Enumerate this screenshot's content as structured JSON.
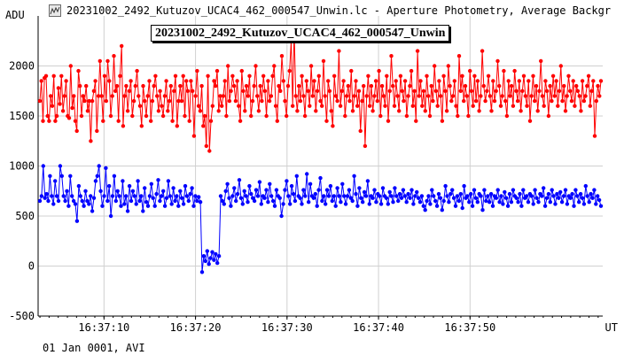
{
  "window": {
    "title": "20231002_2492_Kutuzov_UCAC4_462_000547_Unwin.lc - Aperture Photometry, Average Backgr",
    "icon": "lightcurve-app-icon"
  },
  "footer": "01 Jan 0001, AVI",
  "chart_data": {
    "type": "line",
    "title": "20231002_2492_Kutuzov_UCAC4_462_000547_Unwin",
    "ylabel": "ADU",
    "xlabel": "UT",
    "ylim": [
      -500,
      2500
    ],
    "yticks": [
      -500,
      0,
      500,
      1000,
      1500,
      2000
    ],
    "xlim": [
      "16:37:02.8",
      "16:38:04.5"
    ],
    "xticks": [
      "16:37:10",
      "16:37:20",
      "16:37:30",
      "16:37:40",
      "16:37:50"
    ],
    "grid": true,
    "series": [
      {
        "color": "#ff0000",
        "style": "line-with-markers",
        "approx_range": [
          1150,
          2350
        ],
        "values": [
          1650,
          1850,
          1450,
          1880,
          1900,
          1500,
          1450,
          1700,
          1600,
          1900,
          1450,
          1500,
          1780,
          1620,
          1900,
          1550,
          1700,
          1850,
          1500,
          1480,
          2000,
          1580,
          1700,
          1450,
          1350,
          1950,
          1800,
          1500,
          1700,
          1650,
          1800,
          1550,
          1650,
          1250,
          1650,
          1750,
          1850,
          1350,
          1700,
          2050,
          1700,
          1450,
          1900,
          1650,
          2050,
          1850,
          1500,
          1700,
          2100,
          1750,
          1800,
          1450,
          1900,
          2200,
          1400,
          1700,
          1800,
          1550,
          1750,
          1850,
          1500,
          1650,
          1800,
          1950,
          1700,
          1600,
          1400,
          1800,
          1650,
          1500,
          1700,
          1850,
          1450,
          1650,
          1800,
          1900,
          1700,
          1550,
          1750,
          1600,
          1500,
          1700,
          1850,
          1550,
          1650,
          1800,
          1450,
          1750,
          1900,
          1400,
          1650,
          1800,
          1650,
          1900,
          1500,
          1850,
          1750,
          1450,
          1850,
          1750,
          1300,
          1700,
          1950,
          1600,
          1550,
          1800,
          1400,
          1500,
          1200,
          1900,
          1150,
          1450,
          1600,
          1850,
          1800,
          1950,
          1550,
          1700,
          1600,
          1700,
          1850,
          1500,
          2000,
          1650,
          1750,
          1900,
          1800,
          1650,
          1850,
          1600,
          1450,
          1950,
          1750,
          1550,
          1800,
          1700,
          1900,
          1500,
          1650,
          1800,
          2000,
          1700,
          1550,
          1800,
          1650,
          1900,
          1750,
          1500,
          1850,
          1650,
          1700,
          1900,
          2000,
          1600,
          1450,
          1800,
          1750,
          2100,
          1850,
          1650,
          1500,
          1800,
          1950,
          2250,
          1600,
          2350,
          1700,
          1550,
          1800,
          1650,
          1900,
          1700,
          1500,
          1850,
          1750,
          1600,
          2000,
          1700,
          1850,
          1550,
          1750,
          1900,
          1650,
          1600,
          2050,
          1700,
          1450,
          1850,
          1750,
          1550,
          1400,
          1900,
          1700,
          1650,
          2150,
          1600,
          1750,
          1850,
          1500,
          1700,
          1800,
          1650,
          1950,
          1550,
          1700,
          1850,
          1600,
          1750,
          1350,
          1650,
          1800,
          1200,
          1700,
          1900,
          1600,
          1800,
          1550,
          1700,
          1850,
          1650,
          1950,
          1500,
          1800,
          1700,
          1600,
          1900,
          1450,
          1750,
          2100,
          1800,
          1600,
          1850,
          1700,
          1550,
          1900,
          1750,
          1650,
          1850,
          1500,
          1700,
          1800,
          1950,
          1600,
          1750,
          1450,
          2150,
          1700,
          1850,
          1600,
          1750,
          1550,
          1900,
          1700,
          1500,
          1800,
          1650,
          2000,
          1750,
          1600,
          1850,
          1700,
          1450,
          1900,
          1750,
          1550,
          2000,
          1800,
          1650,
          1700,
          1850,
          1600,
          1500,
          2100,
          1750,
          1900,
          1650,
          1800,
          1700,
          1500,
          1950,
          1750,
          1600,
          1900,
          1650,
          1850,
          1550,
          1700,
          2150,
          1800,
          1650,
          1750,
          1900,
          1700,
          1550,
          1850,
          1650,
          1750,
          2050,
          1800,
          1600,
          1700,
          1950,
          1650,
          1500,
          1850,
          1700,
          1800,
          1600,
          1950,
          1750,
          1650,
          1850,
          1550,
          1750,
          1900,
          1700,
          1600,
          1850,
          1450,
          1700,
          1900,
          1650,
          1800,
          1550,
          1750,
          2050,
          1700,
          1600,
          1850,
          1750,
          1500,
          1800,
          1650,
          1900,
          1700,
          1850,
          1600,
          1750,
          2000,
          1650,
          1800,
          1550,
          1700,
          1900,
          1750,
          1650,
          1850,
          1600,
          1800,
          1750,
          1700,
          1550,
          1850,
          1650,
          1700,
          1800,
          1900,
          1600,
          1750,
          1850,
          1300,
          1650,
          1800,
          1700,
          1850
        ]
      },
      {
        "color": "#0000ff",
        "style": "line-with-markers",
        "approx_range": [
          -60,
          1020
        ],
        "values": [
          650,
          700,
          1000,
          680,
          720,
          650,
          900,
          700,
          620,
          850,
          700,
          650,
          1000,
          900,
          700,
          650,
          750,
          600,
          900,
          700,
          650,
          620,
          450,
          800,
          700,
          650,
          600,
          750,
          650,
          620,
          700,
          550,
          680,
          850,
          900,
          1000,
          750,
          600,
          700,
          980,
          650,
          800,
          500,
          700,
          900,
          650,
          750,
          700,
          600,
          850,
          620,
          700,
          550,
          800,
          650,
          750,
          700,
          620,
          850,
          650,
          700,
          550,
          780,
          640,
          600,
          700,
          820,
          680,
          600,
          720,
          860,
          650,
          700,
          750,
          600,
          680,
          850,
          700,
          620,
          780,
          650,
          700,
          600,
          750,
          680,
          620,
          800,
          700,
          650,
          720,
          780,
          600,
          700,
          650,
          690,
          640,
          -60,
          100,
          50,
          150,
          20,
          80,
          140,
          60,
          120,
          30,
          100,
          700,
          650,
          620,
          750,
          820,
          680,
          600,
          700,
          780,
          650,
          720,
          860,
          680,
          620,
          750,
          700,
          640,
          800,
          720,
          680,
          650,
          760,
          700,
          840,
          620,
          700,
          680,
          760,
          640,
          820,
          700,
          650,
          600,
          760,
          700,
          680,
          500,
          620,
          760,
          850,
          700,
          620,
          800,
          720,
          650,
          900,
          700,
          680,
          620,
          760,
          700,
          920,
          640,
          820,
          700,
          680,
          720,
          600,
          760,
          880,
          650,
          700,
          620,
          760,
          700,
          800,
          650,
          700,
          600,
          780,
          700,
          640,
          820,
          700,
          620,
          700,
          760,
          680,
          650,
          900,
          720,
          600,
          780,
          680,
          640,
          740,
          700,
          850,
          620,
          700,
          680,
          760,
          640,
          720,
          700,
          620,
          780,
          700,
          680,
          620,
          740,
          700,
          640,
          780,
          700,
          650,
          720,
          680,
          760,
          700,
          640,
          720,
          680,
          760,
          620,
          700,
          740,
          680,
          640,
          700,
          600,
          560,
          650,
          700,
          620,
          760,
          700,
          650,
          600,
          720,
          680,
          560,
          650,
          800,
          700,
          640,
          720,
          760,
          680,
          600,
          700,
          650,
          720,
          580,
          800,
          680,
          700,
          640,
          720,
          600,
          760,
          680,
          640,
          720,
          700,
          560,
          760,
          650,
          700,
          640,
          720,
          600,
          700,
          680,
          760,
          640,
          700,
          620,
          740,
          680,
          600,
          720,
          640,
          760,
          700,
          680,
          640,
          720,
          600,
          760,
          680,
          700,
          640,
          720,
          700,
          620,
          760,
          680,
          640,
          720,
          700,
          780,
          600,
          680,
          720,
          640,
          760,
          700,
          620,
          720,
          680,
          740,
          640,
          700,
          760,
          620,
          700,
          680,
          720,
          600,
          760,
          700,
          640,
          720,
          680,
          620,
          800,
          700,
          640,
          720,
          680,
          760,
          620,
          700,
          660,
          600
        ]
      }
    ]
  }
}
